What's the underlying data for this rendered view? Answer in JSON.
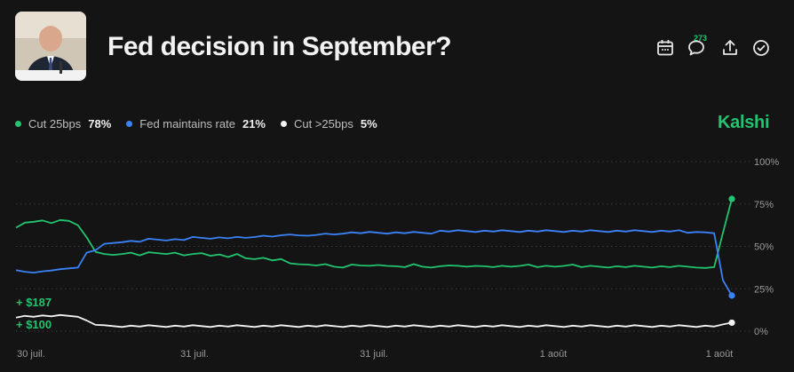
{
  "header": {
    "title": "Fed decision in September?",
    "comment_count": "273"
  },
  "icons": {
    "calendar": "calendar-icon",
    "comments": "comment-bubble-icon",
    "share": "share-icon",
    "check": "check-circle-icon"
  },
  "legend": [
    {
      "label": "Cut 25bps",
      "pct": "78%",
      "color": "#22c46f"
    },
    {
      "label": "Fed maintains rate",
      "pct": "21%",
      "color": "#3b82f6"
    },
    {
      "label": "Cut >25bps",
      "pct": "5%",
      "color": "#f2f2f2"
    }
  ],
  "brand": "Kalshi",
  "amounts": [
    "+ $187",
    "+ $100"
  ],
  "chart_data": {
    "type": "line",
    "x_ticks": [
      "30 juil.",
      "31 juil.",
      "31 juil.",
      "1 août",
      "1 août"
    ],
    "y_ticks": [
      "100%",
      "75%",
      "50%",
      "25%",
      "0%"
    ],
    "ylim": [
      0,
      100
    ],
    "grid": true,
    "series": [
      {
        "name": "Cut 25bps",
        "color": "#22c46f",
        "values": [
          61,
          64,
          65,
          65,
          64,
          65,
          65,
          63,
          55,
          47,
          45,
          45,
          46,
          46,
          45,
          46,
          46,
          46,
          46,
          45,
          45,
          46,
          45,
          45,
          44,
          45,
          43,
          43,
          43,
          42,
          42,
          40,
          40,
          39,
          39,
          39,
          38,
          38,
          39,
          39,
          38,
          39,
          39,
          38,
          38,
          39,
          38,
          38,
          38,
          39,
          38,
          38,
          39,
          38,
          38,
          38,
          38,
          39,
          39,
          38,
          38,
          38,
          39,
          39,
          38,
          38,
          38,
          38,
          38,
          38,
          38,
          38,
          38,
          38,
          38,
          38,
          38,
          38,
          37,
          38,
          58,
          78
        ]
      },
      {
        "name": "Fed maintains rate",
        "color": "#3b82f6",
        "values": [
          36,
          35,
          35,
          35,
          36,
          36,
          37,
          38,
          46,
          48,
          51,
          52,
          53,
          53,
          53,
          54,
          54,
          54,
          54,
          54,
          55,
          55,
          55,
          55,
          55,
          55,
          55,
          56,
          56,
          56,
          56,
          57,
          57,
          56,
          57,
          57,
          57,
          58,
          58,
          58,
          58,
          58,
          58,
          58,
          58,
          58,
          58,
          58,
          59,
          59,
          59,
          59,
          59,
          59,
          59,
          59,
          59,
          59,
          59,
          59,
          59,
          59,
          59,
          59,
          59,
          59,
          59,
          59,
          59,
          59,
          59,
          59,
          59,
          59,
          59,
          59,
          58,
          59,
          58,
          58,
          30,
          21
        ]
      },
      {
        "name": "Cut >25bps",
        "color": "#f2f2f2",
        "values": [
          8,
          9,
          9,
          9,
          9,
          9,
          9,
          9,
          6,
          4,
          3,
          3,
          3,
          3,
          3,
          3,
          3,
          3,
          3,
          3,
          3,
          3,
          3,
          3,
          3,
          3,
          3,
          3,
          3,
          3,
          3,
          3,
          3,
          3,
          3,
          3,
          3,
          3,
          3,
          3,
          3,
          3,
          3,
          3,
          3,
          3,
          3,
          3,
          3,
          3,
          3,
          3,
          3,
          3,
          3,
          3,
          3,
          3,
          3,
          3,
          3,
          3,
          3,
          3,
          3,
          3,
          3,
          3,
          3,
          3,
          3,
          3,
          3,
          3,
          3,
          3,
          3,
          3,
          3,
          3,
          4,
          5
        ]
      }
    ]
  }
}
